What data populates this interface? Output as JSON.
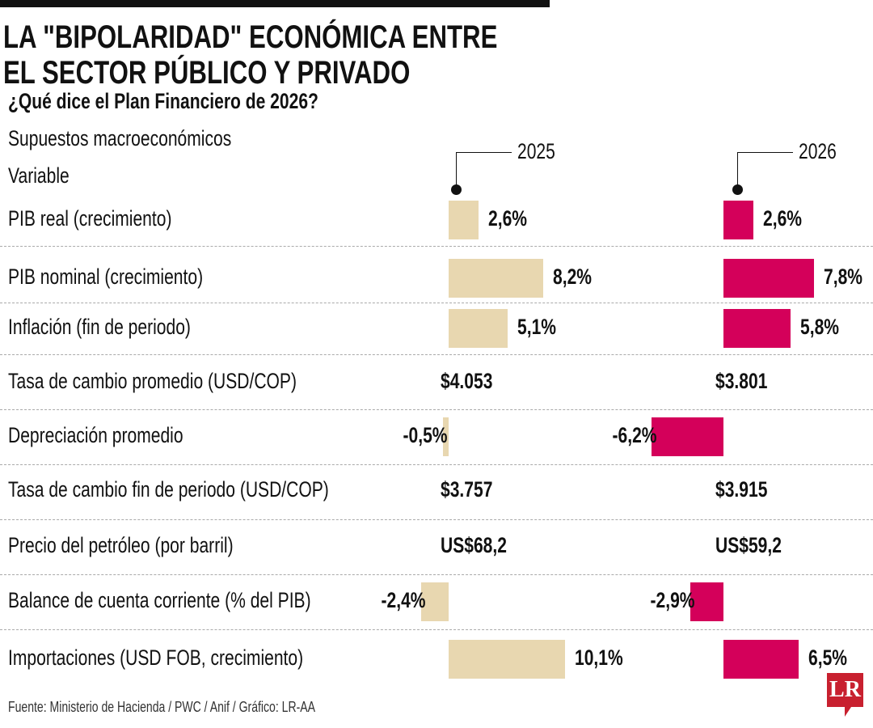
{
  "title_lines": [
    "LA \"BIPOLARIDAD\" ECONÓMICA ENTRE",
    "EL SECTOR PÚBLICO Y PRIVADO"
  ],
  "subtitle": "¿Qué dice el Plan Financiero de 2026?",
  "header": {
    "group": "Supuestos macroeconómicos",
    "variable": "Variable"
  },
  "source": "Fuente: Ministerio de Hacienda / PWC / Anif / Gráfico: LR-AA",
  "logo": "LR",
  "colors": {
    "2025": "#e8d7b0",
    "2026": "#d4005a"
  },
  "chart_data": {
    "type": "bar",
    "orientation": "horizontal",
    "categories": [
      "PIB real (crecimiento)",
      "PIB nominal (crecimiento)",
      "Inflación (fin de periodo)",
      "Tasa de cambio promedio (USD/COP)",
      "Depreciación promedio",
      "Tasa de cambio fin de periodo (USD/COP)",
      "Precio del petróleo (por barril)",
      "Balance de cuenta corriente (% del PIB)",
      "Importaciones (USD FOB, crecimiento)"
    ],
    "series": [
      {
        "name": "2025",
        "values": [
          2.6,
          8.2,
          5.1,
          null,
          -0.5,
          null,
          null,
          -2.4,
          10.1
        ],
        "labels": [
          "2,6%",
          "8,2%",
          "5,1%",
          "$4.053",
          "-0,5%",
          "$3.757",
          "US$68,2",
          "-2,4%",
          "10,1%"
        ]
      },
      {
        "name": "2026",
        "values": [
          2.6,
          7.8,
          5.8,
          null,
          -6.2,
          null,
          null,
          -2.9,
          6.5
        ],
        "labels": [
          "2,6%",
          "7,8%",
          "5,8%",
          "$3.801",
          "-6,2%",
          "$3.915",
          "US$59,2",
          "-2,9%",
          "6,5%"
        ]
      }
    ],
    "grid": false,
    "legend": "top"
  }
}
